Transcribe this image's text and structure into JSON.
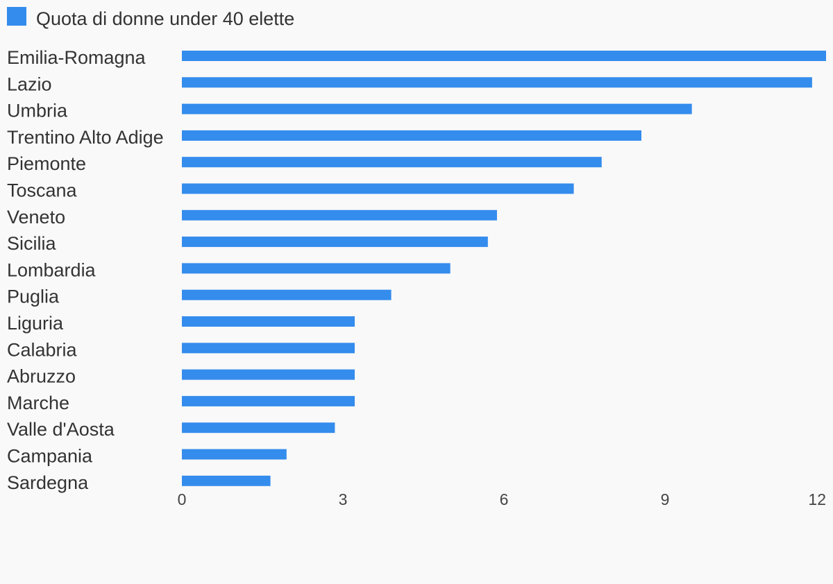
{
  "chart_data": {
    "type": "bar",
    "orientation": "horizontal",
    "title": "",
    "xlabel": "",
    "ylabel": "",
    "series": [
      {
        "name": "Quota di donne under 40 elette",
        "color": "#348ced",
        "values": [
          12.0,
          11.74,
          9.5,
          8.56,
          7.82,
          7.3,
          5.87,
          5.7,
          5.0,
          3.9,
          3.22,
          3.22,
          3.22,
          3.22,
          2.85,
          1.95,
          1.65
        ]
      }
    ],
    "categories": [
      "Emilia-Romagna",
      "Lazio",
      "Umbria",
      "Trentino Alto Adige",
      "Piemonte",
      "Toscana",
      "Veneto",
      "Sicilia",
      "Lombardia",
      "Puglia",
      "Liguria",
      "Calabria",
      "Abruzzo",
      "Marche",
      "Valle d'Aosta",
      "Campania",
      "Sardegna"
    ],
    "xlim": [
      0,
      12
    ],
    "xticks": [
      "0",
      "3",
      "6",
      "9",
      "12"
    ],
    "grid": false,
    "legend_position": "top-left"
  }
}
